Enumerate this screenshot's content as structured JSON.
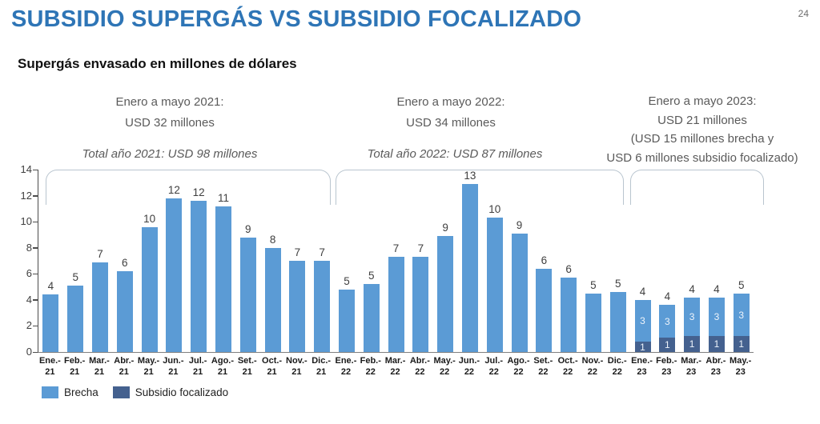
{
  "page": {
    "number": "24"
  },
  "header": {
    "title": "SUBSIDIO SUPERGÁS VS SUBSIDIO FOCALIZADO",
    "subtitle": "Supergás envasado en millones de dólares"
  },
  "annotations": {
    "y2021": {
      "line1": "Enero a mayo 2021:",
      "line2": "USD 32 millones",
      "total": "Total año 2021: USD 98 millones"
    },
    "y2022": {
      "line1": "Enero a mayo 2022:",
      "line2": "USD 34 millones",
      "total": "Total año 2022: USD 87 millones"
    },
    "y2023": {
      "line1": "Enero a mayo 2023:",
      "line2": "USD 21 millones",
      "line3": "(USD 15 millones brecha y",
      "line4": "USD 6 millones subsidio focalizado)"
    }
  },
  "legend": [
    {
      "label": "Brecha",
      "color": "#5B9BD5"
    },
    {
      "label": "Subsidio focalizado",
      "color": "#44618F"
    }
  ],
  "chart_data": {
    "type": "bar",
    "stacked": true,
    "grid": false,
    "legend_position": "bottom-left",
    "ylim": [
      0,
      14
    ],
    "yticks": [
      0,
      2,
      4,
      6,
      8,
      10,
      12,
      14
    ],
    "categories": [
      [
        "Ene.-",
        "21"
      ],
      [
        "Feb.-",
        "21"
      ],
      [
        "Mar.-",
        "21"
      ],
      [
        "Abr.-",
        "21"
      ],
      [
        "May.-",
        "21"
      ],
      [
        "Jun.-",
        "21"
      ],
      [
        "Jul.-",
        "21"
      ],
      [
        "Ago.-",
        "21"
      ],
      [
        "Set.-",
        "21"
      ],
      [
        "Oct.-",
        "21"
      ],
      [
        "Nov.-",
        "21"
      ],
      [
        "Dic.-",
        "21"
      ],
      [
        "Ene.-",
        "22"
      ],
      [
        "Feb.-",
        "22"
      ],
      [
        "Mar.-",
        "22"
      ],
      [
        "Abr.-",
        "22"
      ],
      [
        "May.-",
        "22"
      ],
      [
        "Jun.-",
        "22"
      ],
      [
        "Jul.-",
        "22"
      ],
      [
        "Ago.-",
        "22"
      ],
      [
        "Set.-",
        "22"
      ],
      [
        "Oct.-",
        "22"
      ],
      [
        "Nov.-",
        "22"
      ],
      [
        "Dic.-",
        "22"
      ],
      [
        "Ene.-",
        "23"
      ],
      [
        "Feb.-",
        "23"
      ],
      [
        "Mar.-",
        "23"
      ],
      [
        "Abr.-",
        "23"
      ],
      [
        "May.-",
        "23"
      ]
    ],
    "series": [
      {
        "name": "Brecha",
        "color": "#5B9BD5",
        "values": [
          4.4,
          5.1,
          6.9,
          6.2,
          9.6,
          11.8,
          11.6,
          11.2,
          8.8,
          8.0,
          7.0,
          7.0,
          4.8,
          5.2,
          7.3,
          7.3,
          8.9,
          12.9,
          10.3,
          9.1,
          6.4,
          5.7,
          4.5,
          4.6,
          3.2,
          2.5,
          3.0,
          3.0,
          3.3
        ]
      },
      {
        "name": "Subsidio focalizado",
        "color": "#44618F",
        "values": [
          0,
          0,
          0,
          0,
          0,
          0,
          0,
          0,
          0,
          0,
          0,
          0,
          0,
          0,
          0,
          0,
          0,
          0,
          0,
          0,
          0,
          0,
          0,
          0,
          0.8,
          1.1,
          1.2,
          1.2,
          1.2
        ]
      }
    ],
    "total_labels": [
      "4",
      "5",
      "7",
      "6",
      "10",
      "12",
      "12",
      "11",
      "9",
      "8",
      "7",
      "7",
      "5",
      "5",
      "7",
      "7",
      "9",
      "13",
      "10",
      "9",
      "6",
      "6",
      "5",
      "5",
      "4",
      "4",
      "4",
      "4",
      "5"
    ],
    "brecha_labels": [
      null,
      null,
      null,
      null,
      null,
      null,
      null,
      null,
      null,
      null,
      null,
      null,
      null,
      null,
      null,
      null,
      null,
      null,
      null,
      null,
      null,
      null,
      null,
      null,
      "3",
      "3",
      "3",
      "3",
      "3"
    ],
    "focalizado_labels": [
      null,
      null,
      null,
      null,
      null,
      null,
      null,
      null,
      null,
      null,
      null,
      null,
      null,
      null,
      null,
      null,
      null,
      null,
      null,
      null,
      null,
      null,
      null,
      null,
      "1",
      "1",
      "1",
      "1",
      "1"
    ]
  }
}
